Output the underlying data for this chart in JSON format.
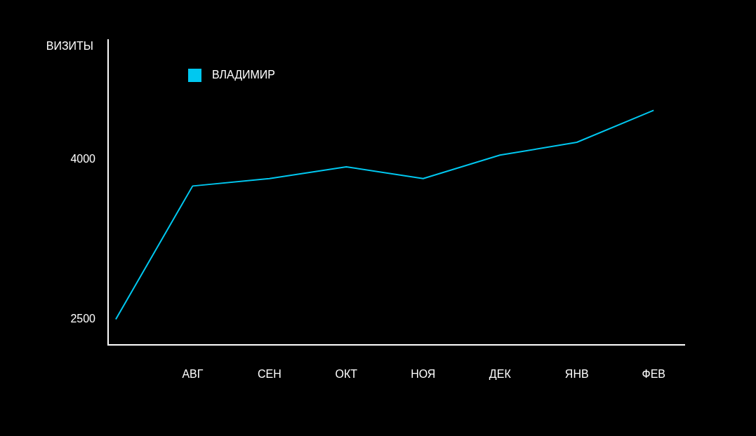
{
  "chart_data": {
    "type": "line",
    "ylabel": "ВИЗИТЫ",
    "categories": [
      null,
      "АВГ",
      "СЕН",
      "ОКТ",
      "НОЯ",
      "ДЕК",
      "ЯНВ",
      "ФЕВ"
    ],
    "series": [
      {
        "name": "ВЛАДИМИР",
        "color": "#00c8f0",
        "values": [
          2500,
          3750,
          3820,
          3930,
          3820,
          4040,
          4160,
          4460
        ]
      }
    ],
    "ylim": [
      2260,
      5120
    ],
    "yticks": [
      2500,
      4000
    ],
    "legend": "top left",
    "marker": "none",
    "line_style": "solid"
  }
}
